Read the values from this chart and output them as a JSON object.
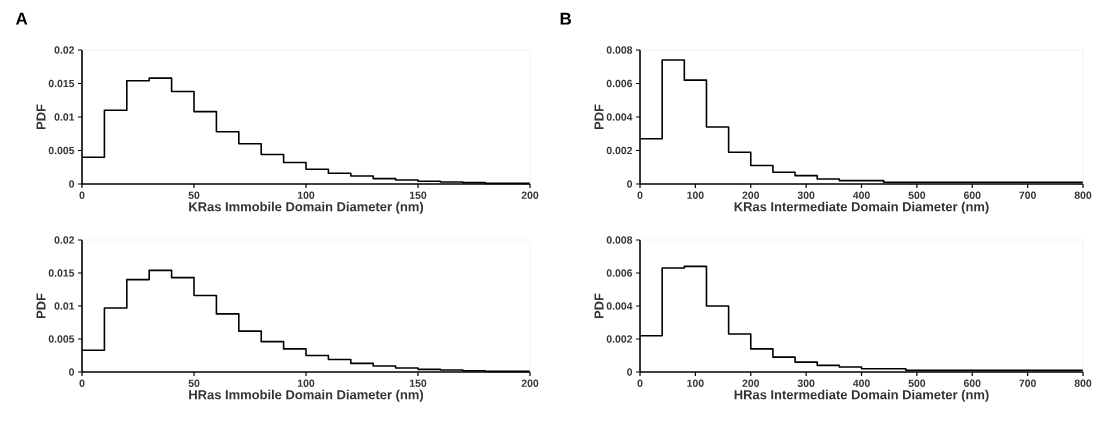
{
  "chart_data": [
    {
      "type": "histogram",
      "title": "A",
      "ylabel": "PDF",
      "xlabel": "KRas Immobile Domain Diameter (nm)",
      "color": "#000000",
      "bins": [
        0,
        10,
        20,
        30,
        40,
        50,
        60,
        70,
        80,
        90,
        100,
        110,
        120,
        130,
        140,
        150,
        160,
        170,
        180,
        190,
        200
      ],
      "values": [
        0.004,
        0.011,
        0.0154,
        0.0158,
        0.0138,
        0.0108,
        0.0078,
        0.006,
        0.0044,
        0.0032,
        0.0022,
        0.0016,
        0.0012,
        0.0008,
        0.0006,
        0.0004,
        0.0003,
        0.0002,
        0.0001,
        0.0001
      ],
      "xlim": [
        0,
        200
      ],
      "xticks": [
        0,
        50,
        100,
        150,
        200
      ],
      "ylim": [
        0,
        0.02
      ],
      "yticks": [
        0,
        0.005,
        0.01,
        0.015,
        0.02
      ]
    },
    {
      "type": "histogram",
      "title": "B",
      "ylabel": "PDF",
      "xlabel": "KRas Intermediate Domain Diameter (nm)",
      "color": "#000000",
      "bins": [
        0,
        40,
        80,
        120,
        160,
        200,
        240,
        280,
        320,
        360,
        400,
        440,
        480,
        520,
        560,
        600,
        640,
        680,
        720,
        760,
        800
      ],
      "values": [
        0.0027,
        0.0074,
        0.0062,
        0.0034,
        0.0019,
        0.0011,
        0.0007,
        0.0005,
        0.0003,
        0.0002,
        0.0002,
        0.0001,
        0.0001,
        0.0001,
        0.0001,
        0.0001,
        0.0001,
        0.0001,
        0.0001,
        0.0001
      ],
      "xlim": [
        0,
        800
      ],
      "xticks": [
        0,
        100,
        200,
        300,
        400,
        500,
        600,
        700,
        800
      ],
      "ylim": [
        0,
        0.008
      ],
      "yticks": [
        0,
        0.002,
        0.004,
        0.006,
        0.008
      ]
    },
    {
      "type": "histogram",
      "ylabel": "PDF",
      "xlabel": "HRas Immobile Domain Diameter (nm)",
      "color": "#000000",
      "bins": [
        0,
        10,
        20,
        30,
        40,
        50,
        60,
        70,
        80,
        90,
        100,
        110,
        120,
        130,
        140,
        150,
        160,
        170,
        180,
        190,
        200
      ],
      "values": [
        0.0033,
        0.0097,
        0.014,
        0.0154,
        0.0143,
        0.0116,
        0.0088,
        0.0062,
        0.0046,
        0.0035,
        0.0025,
        0.0019,
        0.0013,
        0.0009,
        0.0006,
        0.0004,
        0.0003,
        0.0002,
        0.0001,
        0.0001
      ],
      "xlim": [
        0,
        200
      ],
      "xticks": [
        0,
        50,
        100,
        150,
        200
      ],
      "ylim": [
        0,
        0.02
      ],
      "yticks": [
        0,
        0.005,
        0.01,
        0.015,
        0.02
      ]
    },
    {
      "type": "histogram",
      "ylabel": "PDF",
      "xlabel": "HRas Intermediate Domain Diameter (nm)",
      "color": "#000000",
      "bins": [
        0,
        40,
        80,
        120,
        160,
        200,
        240,
        280,
        320,
        360,
        400,
        440,
        480,
        520,
        560,
        600,
        640,
        680,
        720,
        760,
        800
      ],
      "values": [
        0.0022,
        0.0063,
        0.0064,
        0.004,
        0.0023,
        0.0014,
        0.0009,
        0.0006,
        0.0004,
        0.0003,
        0.0002,
        0.0002,
        0.0001,
        0.0001,
        0.0001,
        0.0001,
        0.0001,
        0.0001,
        0.0001,
        0.0001
      ],
      "xlim": [
        0,
        800
      ],
      "xticks": [
        0,
        100,
        200,
        300,
        400,
        500,
        600,
        700,
        800
      ],
      "ylim": [
        0,
        0.008
      ],
      "yticks": [
        0,
        0.002,
        0.004,
        0.006,
        0.008
      ]
    }
  ]
}
